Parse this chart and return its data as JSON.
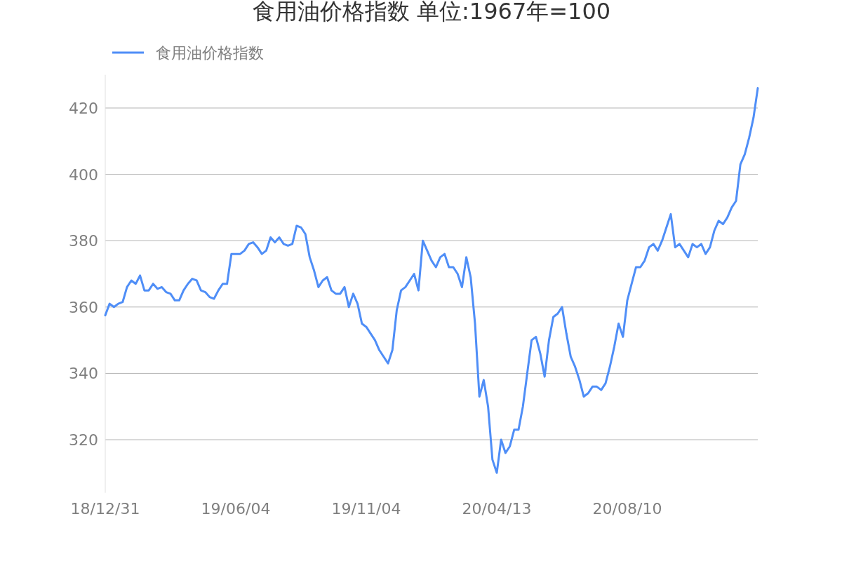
{
  "chart_data": {
    "type": "line",
    "title": "食用油价格指数 单位:1967年=100",
    "categories": [
      "18/12/31",
      null,
      null,
      null,
      null,
      null,
      null,
      null,
      null,
      null,
      null,
      null,
      null,
      null,
      null,
      null,
      null,
      null,
      null,
      null,
      null,
      null,
      null,
      null,
      null,
      null,
      null,
      null,
      null,
      null,
      "19/06/04",
      null,
      null,
      null,
      null,
      null,
      null,
      null,
      null,
      null,
      null,
      null,
      null,
      null,
      null,
      null,
      null,
      null,
      null,
      null,
      null,
      null,
      null,
      null,
      null,
      null,
      null,
      null,
      null,
      null,
      "19/11/04",
      null,
      null,
      null,
      null,
      null,
      null,
      null,
      null,
      null,
      null,
      null,
      null,
      null,
      null,
      null,
      null,
      null,
      null,
      null,
      null,
      null,
      null,
      null,
      null,
      null,
      null,
      null,
      null,
      null,
      "20/04/13",
      null,
      null,
      null,
      null,
      null,
      null,
      null,
      null,
      null,
      null,
      null,
      null,
      null,
      null,
      null,
      null,
      null,
      null,
      null,
      null,
      null,
      null,
      null,
      null,
      null,
      null,
      null,
      null,
      null,
      "20/08/10",
      null,
      null,
      null,
      null,
      null,
      null,
      null,
      null,
      null,
      null,
      null,
      null,
      null,
      null,
      null,
      null,
      null,
      null,
      null,
      null,
      null,
      null,
      null,
      null,
      null,
      null,
      null,
      null,
      null,
      null
    ],
    "series": [
      {
        "name": "食用油价格指数",
        "color": "#4f8ef7",
        "values": [
          357.5,
          361,
          360,
          361,
          361.5,
          366,
          368,
          367,
          369.5,
          365,
          365,
          367,
          365.5,
          366,
          364.5,
          364,
          362,
          362,
          365,
          367,
          368.5,
          368,
          365,
          364.5,
          363,
          362.5,
          365,
          367,
          367,
          376,
          376,
          376,
          377,
          379,
          379.5,
          378,
          376,
          377,
          381,
          379.5,
          381,
          379,
          378.5,
          379,
          384.5,
          384,
          382,
          375,
          371,
          366,
          368,
          369,
          365,
          364,
          364,
          366,
          360,
          364,
          361,
          355,
          354,
          352,
          350,
          347,
          345,
          343,
          347,
          359,
          365,
          366,
          368,
          370,
          365,
          380,
          377,
          374,
          372,
          375,
          376,
          372,
          372,
          370,
          366,
          375,
          369,
          355,
          333,
          338,
          330,
          314,
          310,
          320,
          316,
          318,
          323,
          323,
          330,
          340,
          350,
          351,
          346,
          339,
          350,
          357,
          358,
          360,
          352,
          345,
          342,
          338,
          333,
          334,
          336,
          336,
          335,
          337,
          342,
          348,
          355,
          351,
          362,
          367,
          372,
          372,
          374,
          378,
          379,
          377,
          380,
          384,
          388,
          378,
          379,
          377,
          375,
          379,
          378,
          379,
          376,
          378,
          383,
          386,
          385,
          387,
          390,
          392,
          403,
          406,
          411,
          417,
          426
        ]
      }
    ],
    "ylim": [
      304,
      430
    ],
    "yticks": [
      320,
      340,
      360,
      380,
      400,
      420
    ],
    "grid": "y",
    "legend": "top left"
  }
}
